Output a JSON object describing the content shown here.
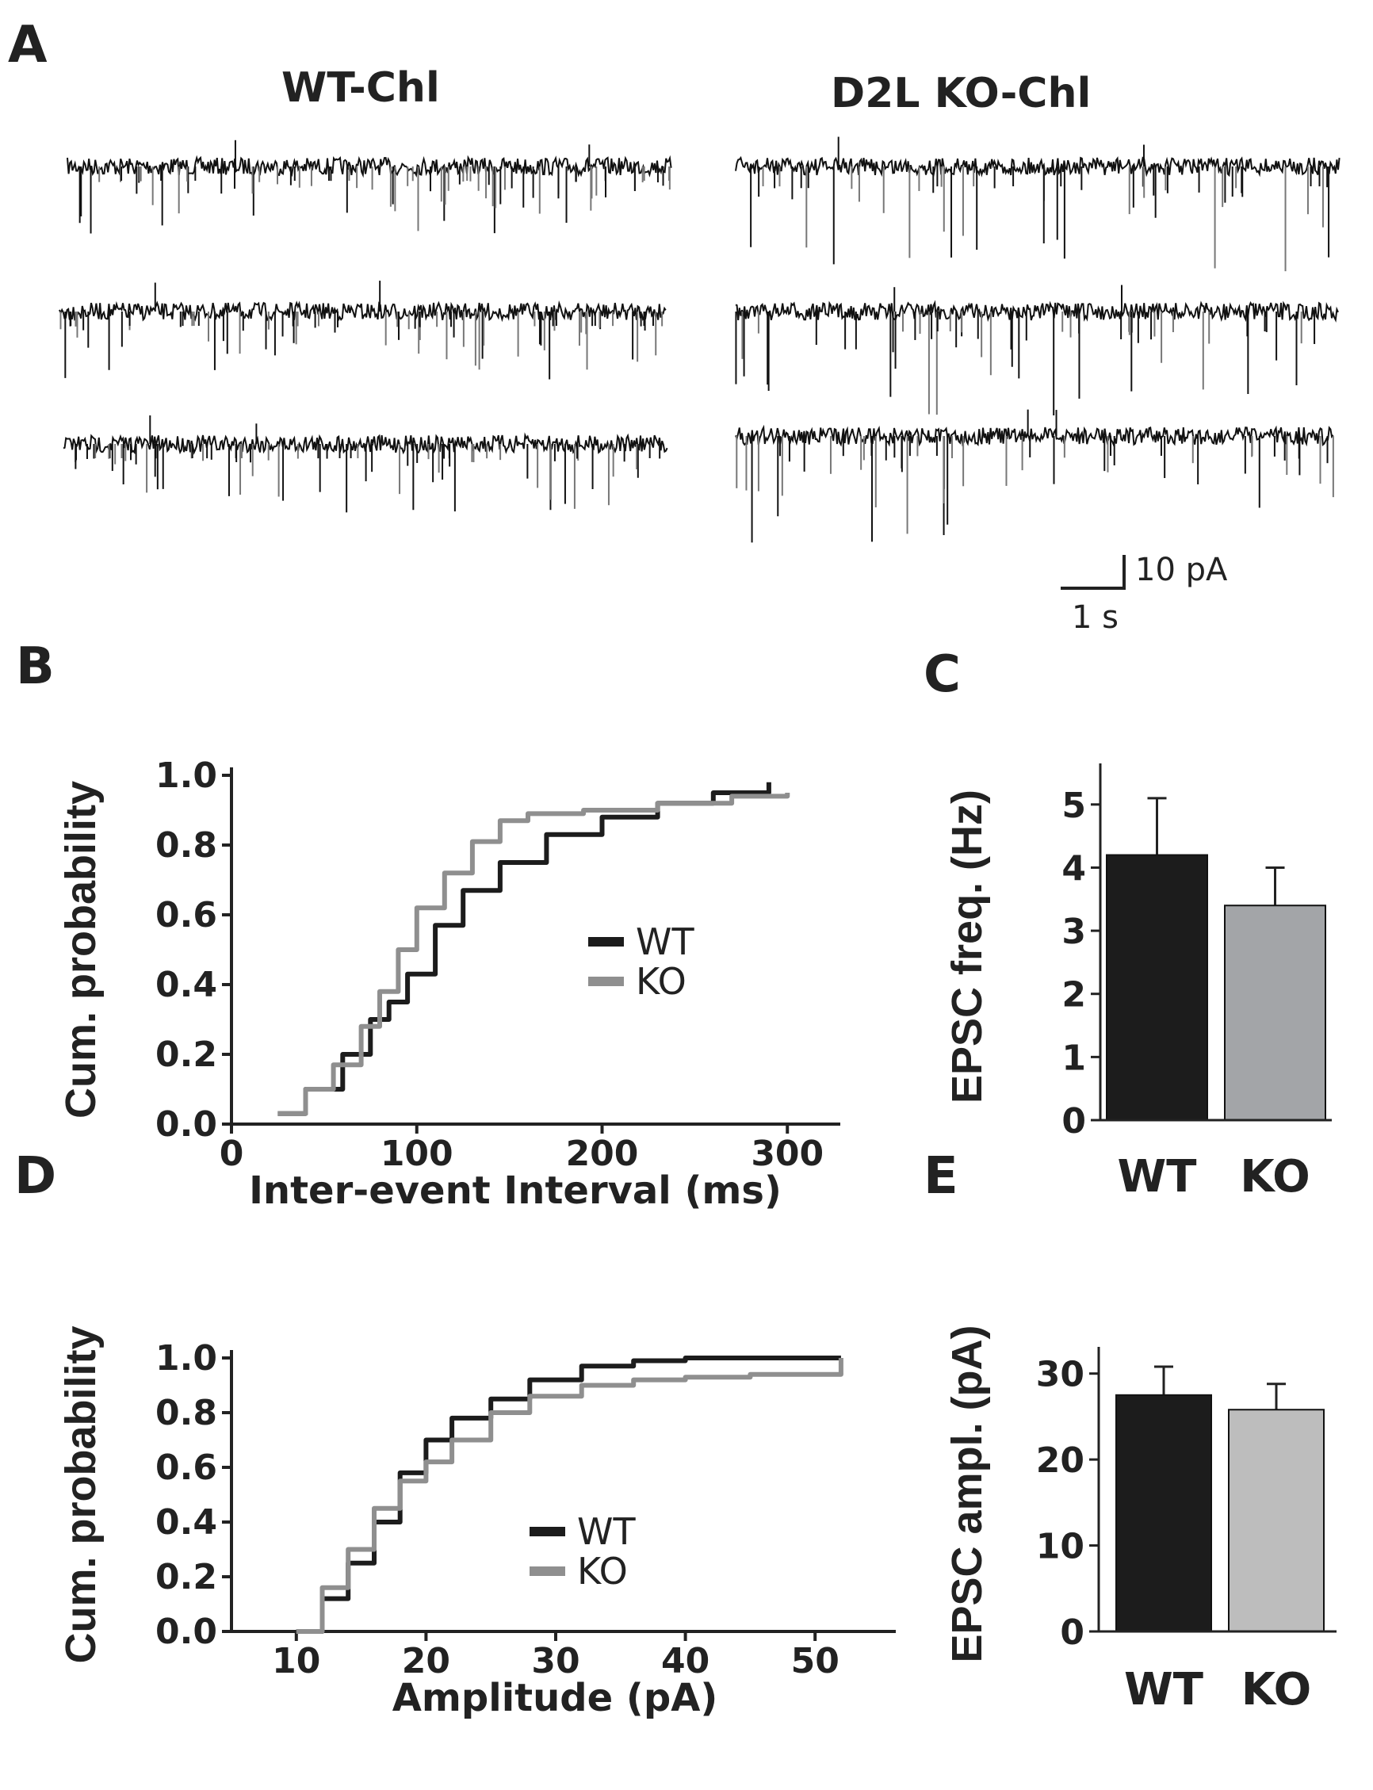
{
  "panel_labels": {
    "a": "A",
    "b": "B",
    "c": "C",
    "d": "D",
    "e": "E"
  },
  "panel_a": {
    "left_title": "WT-Chl",
    "right_title": "D2L KO-Chl",
    "scale_y": "10 pA",
    "scale_x": "1 s"
  },
  "colors": {
    "wt": "#1c1c1c",
    "ko": "#8f8f8f",
    "ko_bar_c": "#a3a5a8",
    "ko_bar_e": "#bdbdbd",
    "axis": "#222222"
  },
  "chart_data": [
    {
      "id": "B",
      "type": "line",
      "title": "",
      "xlabel": "Inter-event Interval (ms)",
      "ylabel": "Cum. probability",
      "xlim": [
        0,
        320
      ],
      "ylim": [
        0,
        1.0
      ],
      "xticks": [
        "0",
        "100",
        "200",
        "300"
      ],
      "yticks": [
        "0.0",
        "0.2",
        "0.4",
        "0.6",
        "0.8",
        "1.0"
      ],
      "legend_position": "center-right",
      "series": [
        {
          "name": "WT",
          "x": [
            25,
            40,
            60,
            75,
            85,
            95,
            110,
            125,
            145,
            170,
            200,
            230,
            260,
            290
          ],
          "y": [
            0.03,
            0.1,
            0.2,
            0.3,
            0.35,
            0.43,
            0.57,
            0.67,
            0.75,
            0.83,
            0.88,
            0.92,
            0.95,
            0.98
          ]
        },
        {
          "name": "KO",
          "x": [
            25,
            40,
            55,
            70,
            80,
            90,
            100,
            115,
            130,
            145,
            160,
            190,
            230,
            270,
            300
          ],
          "y": [
            0.03,
            0.1,
            0.17,
            0.28,
            0.38,
            0.5,
            0.62,
            0.72,
            0.81,
            0.87,
            0.89,
            0.9,
            0.92,
            0.94,
            0.95
          ]
        }
      ]
    },
    {
      "id": "C",
      "type": "bar",
      "title": "",
      "ylabel": "EPSC freq. (Hz)",
      "ylim": [
        0,
        5.5
      ],
      "yticks": [
        "0",
        "1",
        "2",
        "3",
        "4",
        "5"
      ],
      "categories": [
        "WT",
        "KO"
      ],
      "values": [
        4.2,
        3.4
      ],
      "errors": [
        0.9,
        0.6
      ]
    },
    {
      "id": "D",
      "type": "line",
      "title": "",
      "xlabel": "Amplitude (pA)",
      "ylabel": "Cum. probability",
      "xlim": [
        5,
        55
      ],
      "ylim": [
        0,
        1.0
      ],
      "xticks": [
        "10",
        "20",
        "30",
        "40",
        "50"
      ],
      "yticks": [
        "0.0",
        "0.2",
        "0.4",
        "0.6",
        "0.8",
        "1.0"
      ],
      "legend_position": "center-right",
      "series": [
        {
          "name": "WT",
          "x": [
            10,
            12,
            14,
            16,
            18,
            20,
            22,
            25,
            28,
            32,
            36,
            40,
            45,
            52
          ],
          "y": [
            0.0,
            0.12,
            0.25,
            0.4,
            0.58,
            0.7,
            0.78,
            0.85,
            0.92,
            0.97,
            0.99,
            1.0,
            1.0,
            1.0
          ]
        },
        {
          "name": "KO",
          "x": [
            10,
            12,
            14,
            16,
            18,
            20,
            22,
            25,
            28,
            32,
            36,
            40,
            45,
            52
          ],
          "y": [
            0.0,
            0.16,
            0.3,
            0.45,
            0.55,
            0.62,
            0.7,
            0.8,
            0.86,
            0.9,
            0.92,
            0.93,
            0.94,
            1.0
          ]
        }
      ]
    },
    {
      "id": "E",
      "type": "bar",
      "title": "",
      "ylabel": "EPSC ampl. (pA)",
      "ylim": [
        0,
        32
      ],
      "yticks": [
        "0",
        "10",
        "20",
        "30"
      ],
      "categories": [
        "WT",
        "KO"
      ],
      "values": [
        27.5,
        25.8
      ],
      "errors": [
        3.3,
        3.0
      ]
    }
  ]
}
